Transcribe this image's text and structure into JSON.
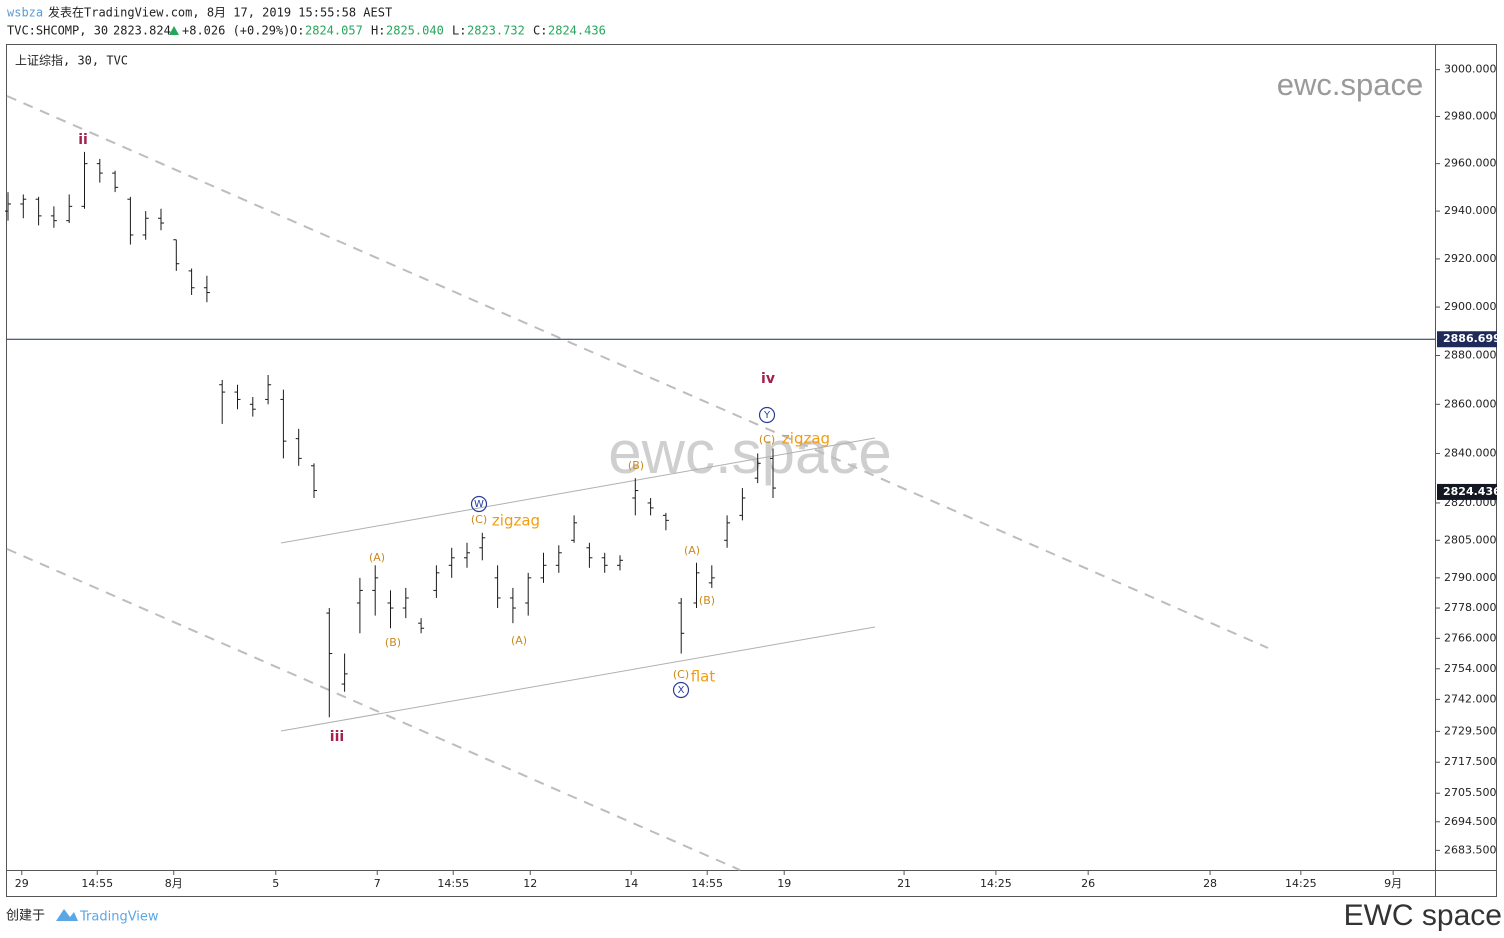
{
  "header": {
    "author": "wsbza",
    "published": "发表在TradingView.com, 8月 17, 2019 15:55:58 AEST",
    "symbol": "TVC:SHCOMP, 30",
    "last": "2823.824",
    "change": "+8.026 (+0.29%)",
    "ohlc": [
      {
        "k": "O:",
        "v": "2824.057"
      },
      {
        "k": "H:",
        "v": "2825.040"
      },
      {
        "k": "L:",
        "v": "2823.732"
      },
      {
        "k": "C:",
        "v": "2824.436"
      }
    ]
  },
  "chart_data": {
    "type": "ohlc",
    "legend": "上证综指, 30, TVC",
    "watermark": "ewc.space",
    "color": "#1a1a1a",
    "log_scale": true,
    "x": [
      0,
      3,
      6,
      9,
      12,
      15,
      18,
      21,
      24,
      27,
      30,
      33,
      36,
      39,
      42,
      45,
      48,
      51,
      54,
      57,
      60,
      63,
      66,
      69,
      72,
      75,
      78,
      81,
      84,
      87,
      90,
      93,
      96,
      99,
      102,
      105,
      108,
      111,
      114,
      117,
      120,
      123,
      126,
      129,
      132,
      135,
      138,
      141,
      144,
      147,
      150
    ],
    "open": [
      2940,
      2943,
      2945,
      2938,
      2936,
      2942,
      2960,
      2956,
      2945,
      2930,
      2937,
      2928,
      2915,
      2908,
      2868,
      2865,
      2860,
      2862,
      2862,
      2846,
      2835,
      2776,
      2748,
      2780,
      2785,
      2780,
      2778,
      2772,
      2785,
      2795,
      2798,
      2802,
      2790,
      2782,
      2780,
      2790,
      2795,
      2805,
      2802,
      2798,
      2795,
      2822,
      2820,
      2815,
      2780,
      2780,
      2788,
      2805,
      2815,
      2830,
      2838
    ],
    "high": [
      2948,
      2947,
      2946,
      2942,
      2947,
      2965,
      2962,
      2957,
      2946,
      2940,
      2941,
      2928,
      2916,
      2913,
      2870,
      2868,
      2863,
      2872,
      2866,
      2850,
      2836,
      2778,
      2760,
      2790,
      2795,
      2785,
      2786,
      2774,
      2795,
      2802,
      2804,
      2808,
      2795,
      2786,
      2792,
      2800,
      2803,
      2815,
      2804,
      2800,
      2799,
      2830,
      2822,
      2816,
      2782,
      2796,
      2795,
      2815,
      2826,
      2840,
      2842
    ],
    "low": [
      2936,
      2937,
      2934,
      2933,
      2935,
      2941,
      2952,
      2948,
      2926,
      2928,
      2932,
      2915,
      2905,
      2902,
      2852,
      2858,
      2855,
      2860,
      2838,
      2835,
      2822,
      2735,
      2745,
      2768,
      2775,
      2770,
      2774,
      2768,
      2782,
      2790,
      2794,
      2797,
      2778,
      2772,
      2775,
      2788,
      2792,
      2804,
      2794,
      2792,
      2793,
      2815,
      2815,
      2809,
      2760,
      2778,
      2786,
      2802,
      2813,
      2828,
      2822
    ],
    "close": [
      2943,
      2945,
      2938,
      2936,
      2942,
      2960,
      2956,
      2950,
      2930,
      2937,
      2935,
      2918,
      2908,
      2906,
      2865,
      2862,
      2858,
      2868,
      2845,
      2838,
      2825,
      2760,
      2752,
      2785,
      2790,
      2778,
      2782,
      2770,
      2792,
      2798,
      2800,
      2806,
      2782,
      2778,
      2790,
      2795,
      2800,
      2812,
      2798,
      2795,
      2797,
      2825,
      2818,
      2813,
      2768,
      2792,
      2790,
      2812,
      2822,
      2836,
      2826
    ],
    "xlim": [
      0,
      280
    ],
    "ylim": [
      2676,
      3011
    ],
    "xticks": [
      {
        "value": 2.7,
        "label": "29"
      },
      {
        "value": 17.5,
        "label": "14:55"
      },
      {
        "value": 32.5,
        "label": "8月"
      },
      {
        "value": 52.5,
        "label": "5"
      },
      {
        "value": 72.4,
        "label": "7"
      },
      {
        "value": 87.3,
        "label": "14:55"
      },
      {
        "value": 102.4,
        "label": "12"
      },
      {
        "value": 122.2,
        "label": "14"
      },
      {
        "value": 137.1,
        "label": "14:55"
      },
      {
        "value": 152.2,
        "label": "19"
      },
      {
        "value": 175.7,
        "label": "21"
      },
      {
        "value": 193.7,
        "label": "14:25"
      },
      {
        "value": 211.8,
        "label": "26"
      },
      {
        "value": 235.7,
        "label": "28"
      },
      {
        "value": 253.5,
        "label": "14:25"
      },
      {
        "value": 271.6,
        "label": "9月"
      }
    ],
    "yticks": [
      {
        "value": 3000,
        "label": "3000.000"
      },
      {
        "value": 2980,
        "label": "2980.000"
      },
      {
        "value": 2960,
        "label": "2960.000"
      },
      {
        "value": 2940,
        "label": "2940.000"
      },
      {
        "value": 2920,
        "label": "2920.000"
      },
      {
        "value": 2900,
        "label": "2900.000"
      },
      {
        "value": 2880,
        "label": "2880.000"
      },
      {
        "value": 2860,
        "label": "2860.000"
      },
      {
        "value": 2840,
        "label": "2840.000"
      },
      {
        "value": 2820,
        "label": "2820.000"
      },
      {
        "value": 2805,
        "label": "2805.000"
      },
      {
        "value": 2790,
        "label": "2790.000"
      },
      {
        "value": 2778,
        "label": "2778.000"
      },
      {
        "value": 2766,
        "label": "2766.000"
      },
      {
        "value": 2754,
        "label": "2754.000"
      },
      {
        "value": 2742,
        "label": "2742.000"
      },
      {
        "value": 2729.5,
        "label": "2729.500"
      },
      {
        "value": 2717.5,
        "label": "2717.500"
      },
      {
        "value": 2705.5,
        "label": "2705.500"
      },
      {
        "value": 2694.5,
        "label": "2694.500"
      },
      {
        "value": 2683.5,
        "label": "2683.500"
      }
    ],
    "price_markers": [
      {
        "value": 2886.699,
        "label": "2886.699",
        "color": "#1e2a5a",
        "line": true
      },
      {
        "value": 2824.436,
        "label": "2824.436",
        "color": "#131722",
        "line": false
      }
    ],
    "annotations": [
      {
        "text": "ii",
        "color": "#a3214f"
      },
      {
        "text": "iii",
        "color": "#a3214f"
      },
      {
        "text": "iv",
        "color": "#a3214f"
      },
      {
        "text": "Y",
        "color": "#2a3f9c",
        "circled": true
      },
      {
        "text": "(C)",
        "color": "#c98a1e"
      },
      {
        "text": "zigzag",
        "color": "#f39c12"
      },
      {
        "text": "W",
        "color": "#2a3f9c",
        "circled": true
      },
      {
        "text": "(C)",
        "color": "#c98a1e"
      },
      {
        "text": "zigzag",
        "color": "#f39c12"
      },
      {
        "text": "(A)",
        "color": "#c98a1e"
      },
      {
        "text": "(B)",
        "color": "#c98a1e"
      },
      {
        "text": "(A)",
        "color": "#c98a1e"
      },
      {
        "text": "(B)",
        "color": "#c98a1e"
      },
      {
        "text": "(A)",
        "color": "#c98a1e"
      },
      {
        "text": "(B)",
        "color": "#c98a1e"
      },
      {
        "text": "(C)",
        "color": "#c98a1e"
      },
      {
        "text": "flat",
        "color": "#f39c12"
      },
      {
        "text": "X",
        "color": "#2a3f9c",
        "circled": true
      }
    ]
  },
  "footer": {
    "created": "创建于",
    "brand": "TradingView",
    "signature": "EWC space"
  }
}
